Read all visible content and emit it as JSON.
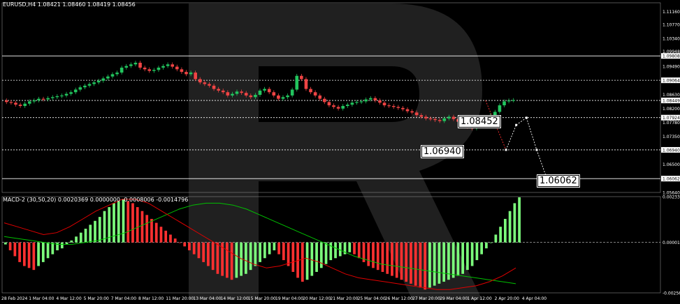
{
  "window": {
    "main_header": "EURUSD,H4  1.08421 1.08460 1.08419 1.08456",
    "macd_header": "MACD-2 (30,50,20) 0.0020369 0.0000000 -0.0008006 -0.0014796"
  },
  "colors": {
    "background": "#000000",
    "bull_candle": "#22c55e",
    "bear_candle": "#ef4444",
    "macd_pos": "#7CFC7C",
    "macd_neg": "#ff3030",
    "signal_green": "#00c000",
    "signal_red": "#e00000",
    "dotted_forecast": "#ffffff",
    "dotted_red": "#ff3030",
    "watermark": "#3a3a3a"
  },
  "chart_data": [
    {
      "type": "candlestick",
      "symbol": "EURUSD,H4",
      "ylim": [
        1.0564,
        1.1126
      ],
      "price_axis_labels": [
        "1.11160",
        "1.10770",
        "1.10340",
        "1.09948",
        "1.09808",
        "1.09490",
        "1.09064",
        "1.08630",
        "1.08449",
        "1.08200",
        "1.07924",
        "1.07780",
        "1.07350",
        "1.06940",
        "1.06500",
        "1.06062",
        "1.05640"
      ],
      "highlighted_levels": [
        "1.09808",
        "1.09064",
        "1.08449",
        "1.07924",
        "1.06940",
        "1.06062"
      ],
      "time_labels": [
        "28 Feb 2024",
        "1 Mar 04:00",
        "4 Mar 12:00",
        "5 Mar 20:00",
        "7 Mar 04:00",
        "8 Mar 12:00",
        "11 Mar 20:00",
        "13 Mar 04:00",
        "14 Mar 12:00",
        "15 Mar 20:00",
        "19 Mar 04:00",
        "20 Mar 12:00",
        "21 Mar 20:00",
        "25 Mar 04:00",
        "26 Mar 12:00",
        "27 Mar 20:00",
        "29 Mar 04:00",
        "1 Apr 12:00",
        "2 Apr 20:00",
        "4 Apr 04:00"
      ],
      "annotations": [
        {
          "text": "1.08452",
          "price": 1.08452
        },
        {
          "text": "1.06940",
          "price": 1.0694
        },
        {
          "text": "1.06062",
          "price": 1.06062
        }
      ],
      "forecast_path": [
        {
          "x": 0.92,
          "y": 1.0845
        },
        {
          "x": 0.97,
          "y": 1.0694
        },
        {
          "x": 0.995,
          "y": 1.077
        },
        {
          "x": 1.02,
          "y": 1.0792
        },
        {
          "x": 1.045,
          "y": 1.0694
        },
        {
          "x": 1.07,
          "y": 1.0606
        }
      ],
      "closes": [
        1.084,
        1.0838,
        1.0832,
        1.0828,
        1.0835,
        1.0842,
        1.0845,
        1.085,
        1.0848,
        1.0852,
        1.0855,
        1.0858,
        1.086,
        1.0865,
        1.087,
        1.0878,
        1.0885,
        1.089,
        1.0895,
        1.09,
        1.0905,
        1.0912,
        1.0918,
        1.0925,
        1.093,
        1.0945,
        1.095,
        1.0955,
        1.096,
        1.0945,
        1.094,
        1.0935,
        1.0938,
        1.0945,
        1.095,
        1.0955,
        1.0948,
        1.094,
        1.0932,
        1.0925,
        1.093,
        1.091,
        1.09,
        1.0895,
        1.089,
        1.088,
        1.0875,
        1.087,
        1.086,
        1.0865,
        1.0872,
        1.0868,
        1.086,
        1.0855,
        1.0862,
        1.0875,
        1.088,
        1.087,
        1.086,
        1.085,
        1.0855,
        1.086,
        1.0878,
        1.092,
        1.091,
        1.088,
        1.087,
        1.086,
        1.085,
        1.084,
        1.083,
        1.0825,
        1.082,
        1.0828,
        1.0832,
        1.0838,
        1.084,
        1.0842,
        1.0848,
        1.0852,
        1.0845,
        1.0838,
        1.083,
        1.0828,
        1.0825,
        1.0822,
        1.0818,
        1.0812,
        1.0808,
        1.08,
        1.0795,
        1.079,
        1.0788,
        1.0785,
        1.0782,
        1.079,
        1.0795,
        1.0788,
        1.078,
        1.077,
        1.0765,
        1.076,
        1.0775,
        1.0785,
        1.079,
        1.08,
        1.081,
        1.083,
        1.0842,
        1.0845,
        1.0846
      ]
    },
    {
      "type": "bar",
      "name": "MACD-2 (30,50,20)",
      "ylim": [
        -0.0025669,
        0.0023349
      ],
      "axis_labels": [
        "0.0023349",
        "0.0000140",
        "-0.0025669"
      ],
      "histogram": [
        -0.0001,
        -0.0004,
        -0.0007,
        -0.001,
        -0.0012,
        -0.0013,
        -0.0014,
        -0.0012,
        -0.001,
        -0.0008,
        -0.0006,
        -0.0004,
        -0.0003,
        -0.0001,
        0.0001,
        0.0003,
        0.0005,
        0.0007,
        0.0009,
        0.0011,
        0.0013,
        0.0016,
        0.0018,
        0.002,
        0.0021,
        0.0022,
        0.0021,
        0.002,
        0.0018,
        0.0016,
        0.0014,
        0.0012,
        0.001,
        0.0008,
        0.0006,
        0.0004,
        0.0002,
        0.0,
        -0.0002,
        -0.0004,
        -0.0006,
        -0.0008,
        -0.001,
        -0.0012,
        -0.0014,
        -0.0016,
        -0.0017,
        -0.0018,
        -0.0019,
        -0.0018,
        -0.0017,
        -0.0016,
        -0.0014,
        -0.0012,
        -0.001,
        -0.0008,
        -0.0006,
        -0.0004,
        -0.0006,
        -0.0009,
        -0.0012,
        -0.0015,
        -0.0018,
        -0.002,
        -0.0019,
        -0.0017,
        -0.0015,
        -0.0013,
        -0.0011,
        -0.0009,
        -0.0008,
        -0.0007,
        -0.0006,
        -0.0005,
        -0.0006,
        -0.0008,
        -0.001,
        -0.0012,
        -0.0013,
        -0.0014,
        -0.0015,
        -0.0016,
        -0.0017,
        -0.0018,
        -0.0019,
        -0.002,
        -0.0021,
        -0.0022,
        -0.0023,
        -0.0024,
        -0.0023,
        -0.0022,
        -0.0021,
        -0.002,
        -0.0019,
        -0.0018,
        -0.0017,
        -0.0016,
        -0.0014,
        -0.0012,
        -0.0009,
        -0.0006,
        -0.0003,
        0.0,
        0.0004,
        0.0008,
        0.0012,
        0.0016,
        0.002,
        0.0023
      ],
      "signal_green": [
        0.0003,
        0.0002,
        0.0001,
        0.0,
        -0.0001,
        -0.0001,
        0.0,
        0.0001,
        0.0003,
        0.0005,
        0.0008,
        0.0011,
        0.0014,
        0.0017,
        0.0019,
        0.002,
        0.002,
        0.0019,
        0.0017,
        0.0014,
        0.0011,
        0.0008,
        0.0005,
        0.0002,
        -0.0001,
        -0.0004,
        -0.0007,
        -0.0009,
        -0.0011,
        -0.0012,
        -0.0013,
        -0.0014,
        -0.0015,
        -0.0016,
        -0.0017,
        -0.0018,
        -0.0019,
        -0.002,
        -0.0021
      ],
      "signal_red": [
        0.001,
        0.0008,
        0.0006,
        0.0004,
        0.0005,
        0.0008,
        0.0012,
        0.0016,
        0.0019,
        0.0022,
        0.0022,
        0.002,
        0.0016,
        0.0012,
        0.0008,
        0.0004,
        0.0,
        -0.0004,
        -0.0008,
        -0.0011,
        -0.0013,
        -0.0012,
        -0.001,
        -0.0008,
        -0.001,
        -0.0013,
        -0.0016,
        -0.0018,
        -0.0019,
        -0.002,
        -0.0021,
        -0.0022,
        -0.0023,
        -0.0024,
        -0.0024,
        -0.0023,
        -0.0022,
        -0.002,
        -0.0017,
        -0.0013
      ]
    }
  ]
}
